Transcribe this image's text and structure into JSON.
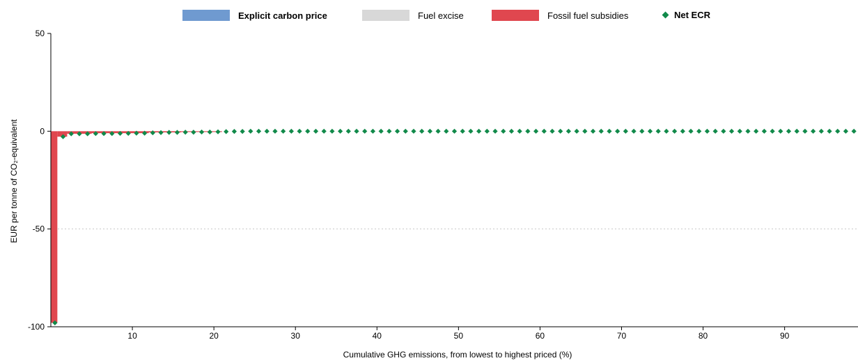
{
  "chart_data": {
    "type": "bar",
    "xlabel": "Cumulative GHG emissions, from lowest to highest priced (%)",
    "ylabel": "EUR per tonne of CO₂-equivalent",
    "xlim": [
      0,
      99
    ],
    "ylim": [
      -100,
      50
    ],
    "xticks": [
      10,
      20,
      30,
      40,
      50,
      60,
      70,
      80,
      90
    ],
    "yticks": [
      50,
      0,
      -50,
      -100
    ],
    "grid": "dotted horizontal at -50",
    "legend_position": "top",
    "colors": {
      "explicit_carbon_price": "#6f9ad0",
      "fuel_excise": "#d8d8d8",
      "fossil_fuel_subsidies": "#e0474f",
      "net_ecr": "#118a4a"
    },
    "series": [
      {
        "name": "Explicit carbon price",
        "key": "explicit_carbon_price",
        "bars": []
      },
      {
        "name": "Fuel excise",
        "key": "fuel_excise",
        "bars": []
      },
      {
        "name": "Fossil fuel subsidies",
        "key": "fossil_fuel_subsidies",
        "bars": [
          {
            "x_start": 0,
            "x_end": 0.8,
            "value": -98
          },
          {
            "x_start": 0.8,
            "x_end": 2,
            "value": -2.8
          },
          {
            "x_start": 2,
            "x_end": 5,
            "value": -1.3
          },
          {
            "x_start": 5,
            "x_end": 12,
            "value": -1.0
          },
          {
            "x_start": 12,
            "x_end": 16,
            "value": -0.6
          },
          {
            "x_start": 16,
            "x_end": 21,
            "value": -0.4
          }
        ]
      },
      {
        "name": "Net ECR",
        "key": "net_ecr",
        "x_start": 0.5,
        "x_step": 1.0,
        "values": [
          -98,
          -2.8,
          -1.3,
          -1.3,
          -1.3,
          -1.2,
          -1.2,
          -1.2,
          -1.1,
          -1.1,
          -1.0,
          -1.0,
          -0.8,
          -0.7,
          -0.6,
          -0.6,
          -0.5,
          -0.5,
          -0.4,
          -0.4,
          -0.3,
          -0.2,
          -0.1,
          -0.1,
          0,
          0,
          0,
          0,
          0,
          0,
          0,
          0,
          0,
          0,
          0,
          0,
          0,
          0,
          0,
          0,
          0,
          0,
          0,
          0,
          0,
          0,
          0,
          0,
          0,
          0,
          0,
          0,
          0,
          0,
          0,
          0,
          0,
          0,
          0,
          0,
          0,
          0,
          0,
          0,
          0,
          0,
          0,
          0,
          0,
          0,
          0,
          0,
          0,
          0,
          0,
          0,
          0,
          0,
          0,
          0,
          0,
          0,
          0,
          0,
          0,
          0,
          0,
          0,
          0,
          0,
          0,
          0,
          0,
          0,
          0,
          0,
          0,
          0,
          0
        ]
      }
    ]
  },
  "legend": {
    "explicit_carbon_price": "Explicit carbon price",
    "fuel_excise": "Fuel excise",
    "fossil_fuel_subsidies": "Fossil fuel subsidies",
    "net_ecr": "Net ECR"
  },
  "axes": {
    "xlabel": "Cumulative GHG emissions, from lowest to highest priced (%)",
    "ylabel": "EUR per tonne of CO₂-equivalent"
  }
}
